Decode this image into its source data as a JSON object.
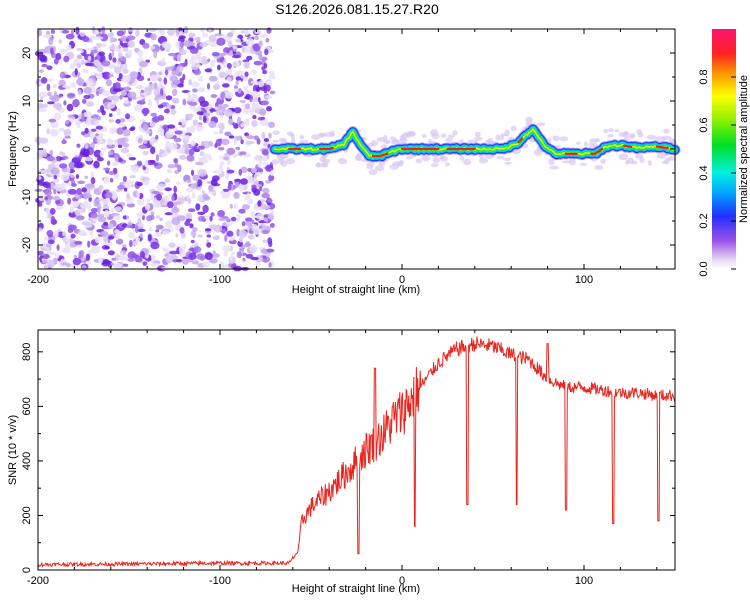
{
  "title": "S126.2026.081.15.27.R20",
  "chart_data": [
    {
      "type": "heatmap",
      "name": "spectrogram",
      "xlabel": "Height of straight line (km)",
      "ylabel": "Frequency (Hz)",
      "xlim": [
        -200,
        150
      ],
      "ylim": [
        -25,
        25
      ],
      "xticks": [
        -200,
        -100,
        0,
        100
      ],
      "yticks": [
        -20,
        -10,
        0,
        10,
        20
      ],
      "noise_region_x": [
        -200,
        -70
      ],
      "signal_start_x": -70,
      "ridge": {
        "x": [
          -70,
          -60,
          -50,
          -40,
          -32,
          -27,
          -23,
          -18,
          -12,
          -5,
          0,
          20,
          40,
          55,
          63,
          68,
          72,
          76,
          80,
          85,
          90,
          100,
          106,
          112,
          120,
          130,
          140,
          150
        ],
        "freq": [
          0,
          0,
          0,
          0,
          1,
          3.5,
          1,
          -1.5,
          -1.5,
          -0.5,
          0,
          0,
          0,
          0,
          1,
          3,
          4,
          2,
          0,
          -1,
          -1,
          -1,
          -1,
          0.5,
          0.8,
          0.2,
          0.5,
          0
        ]
      },
      "colorbar": {
        "label": "Normalized spectral amplitude",
        "ticks": [
          0.0,
          0.2,
          0.4,
          0.6,
          0.8
        ],
        "range": [
          0,
          1
        ]
      }
    },
    {
      "type": "line",
      "name": "snr",
      "xlabel": "Height of straight line (km)",
      "ylabel": "SNR (10 * v/v)",
      "xlim": [
        -200,
        150
      ],
      "ylim": [
        0,
        880
      ],
      "xticks": [
        -200,
        -100,
        0,
        100
      ],
      "yticks": [
        0,
        200,
        400,
        600,
        800
      ],
      "color": "#e8251f",
      "series": [
        {
          "name": "SNR",
          "x": [
            -200,
            -150,
            -100,
            -62,
            -57,
            -55,
            -50,
            -40,
            -30,
            -25,
            -20,
            -15,
            -10,
            -5,
            0,
            10,
            20,
            30,
            40,
            50,
            60,
            70,
            80,
            90,
            100,
            110,
            120,
            130,
            140,
            150
          ],
          "y": [
            20,
            22,
            25,
            25,
            70,
            180,
            230,
            290,
            360,
            400,
            440,
            470,
            500,
            550,
            580,
            670,
            760,
            810,
            830,
            820,
            790,
            770,
            700,
            670,
            670,
            660,
            650,
            650,
            640,
            640
          ]
        }
      ],
      "dips": [
        {
          "x": -24,
          "y": 60
        },
        {
          "x": 7,
          "y": 160
        },
        {
          "x": 36,
          "y": 240
        },
        {
          "x": 63,
          "y": 240
        },
        {
          "x": 90,
          "y": 220
        },
        {
          "x": 116,
          "y": 170
        },
        {
          "x": 141,
          "y": 180
        }
      ],
      "spikes": [
        {
          "x": -15,
          "y": 740
        },
        {
          "x": 80,
          "y": 830
        }
      ]
    }
  ]
}
